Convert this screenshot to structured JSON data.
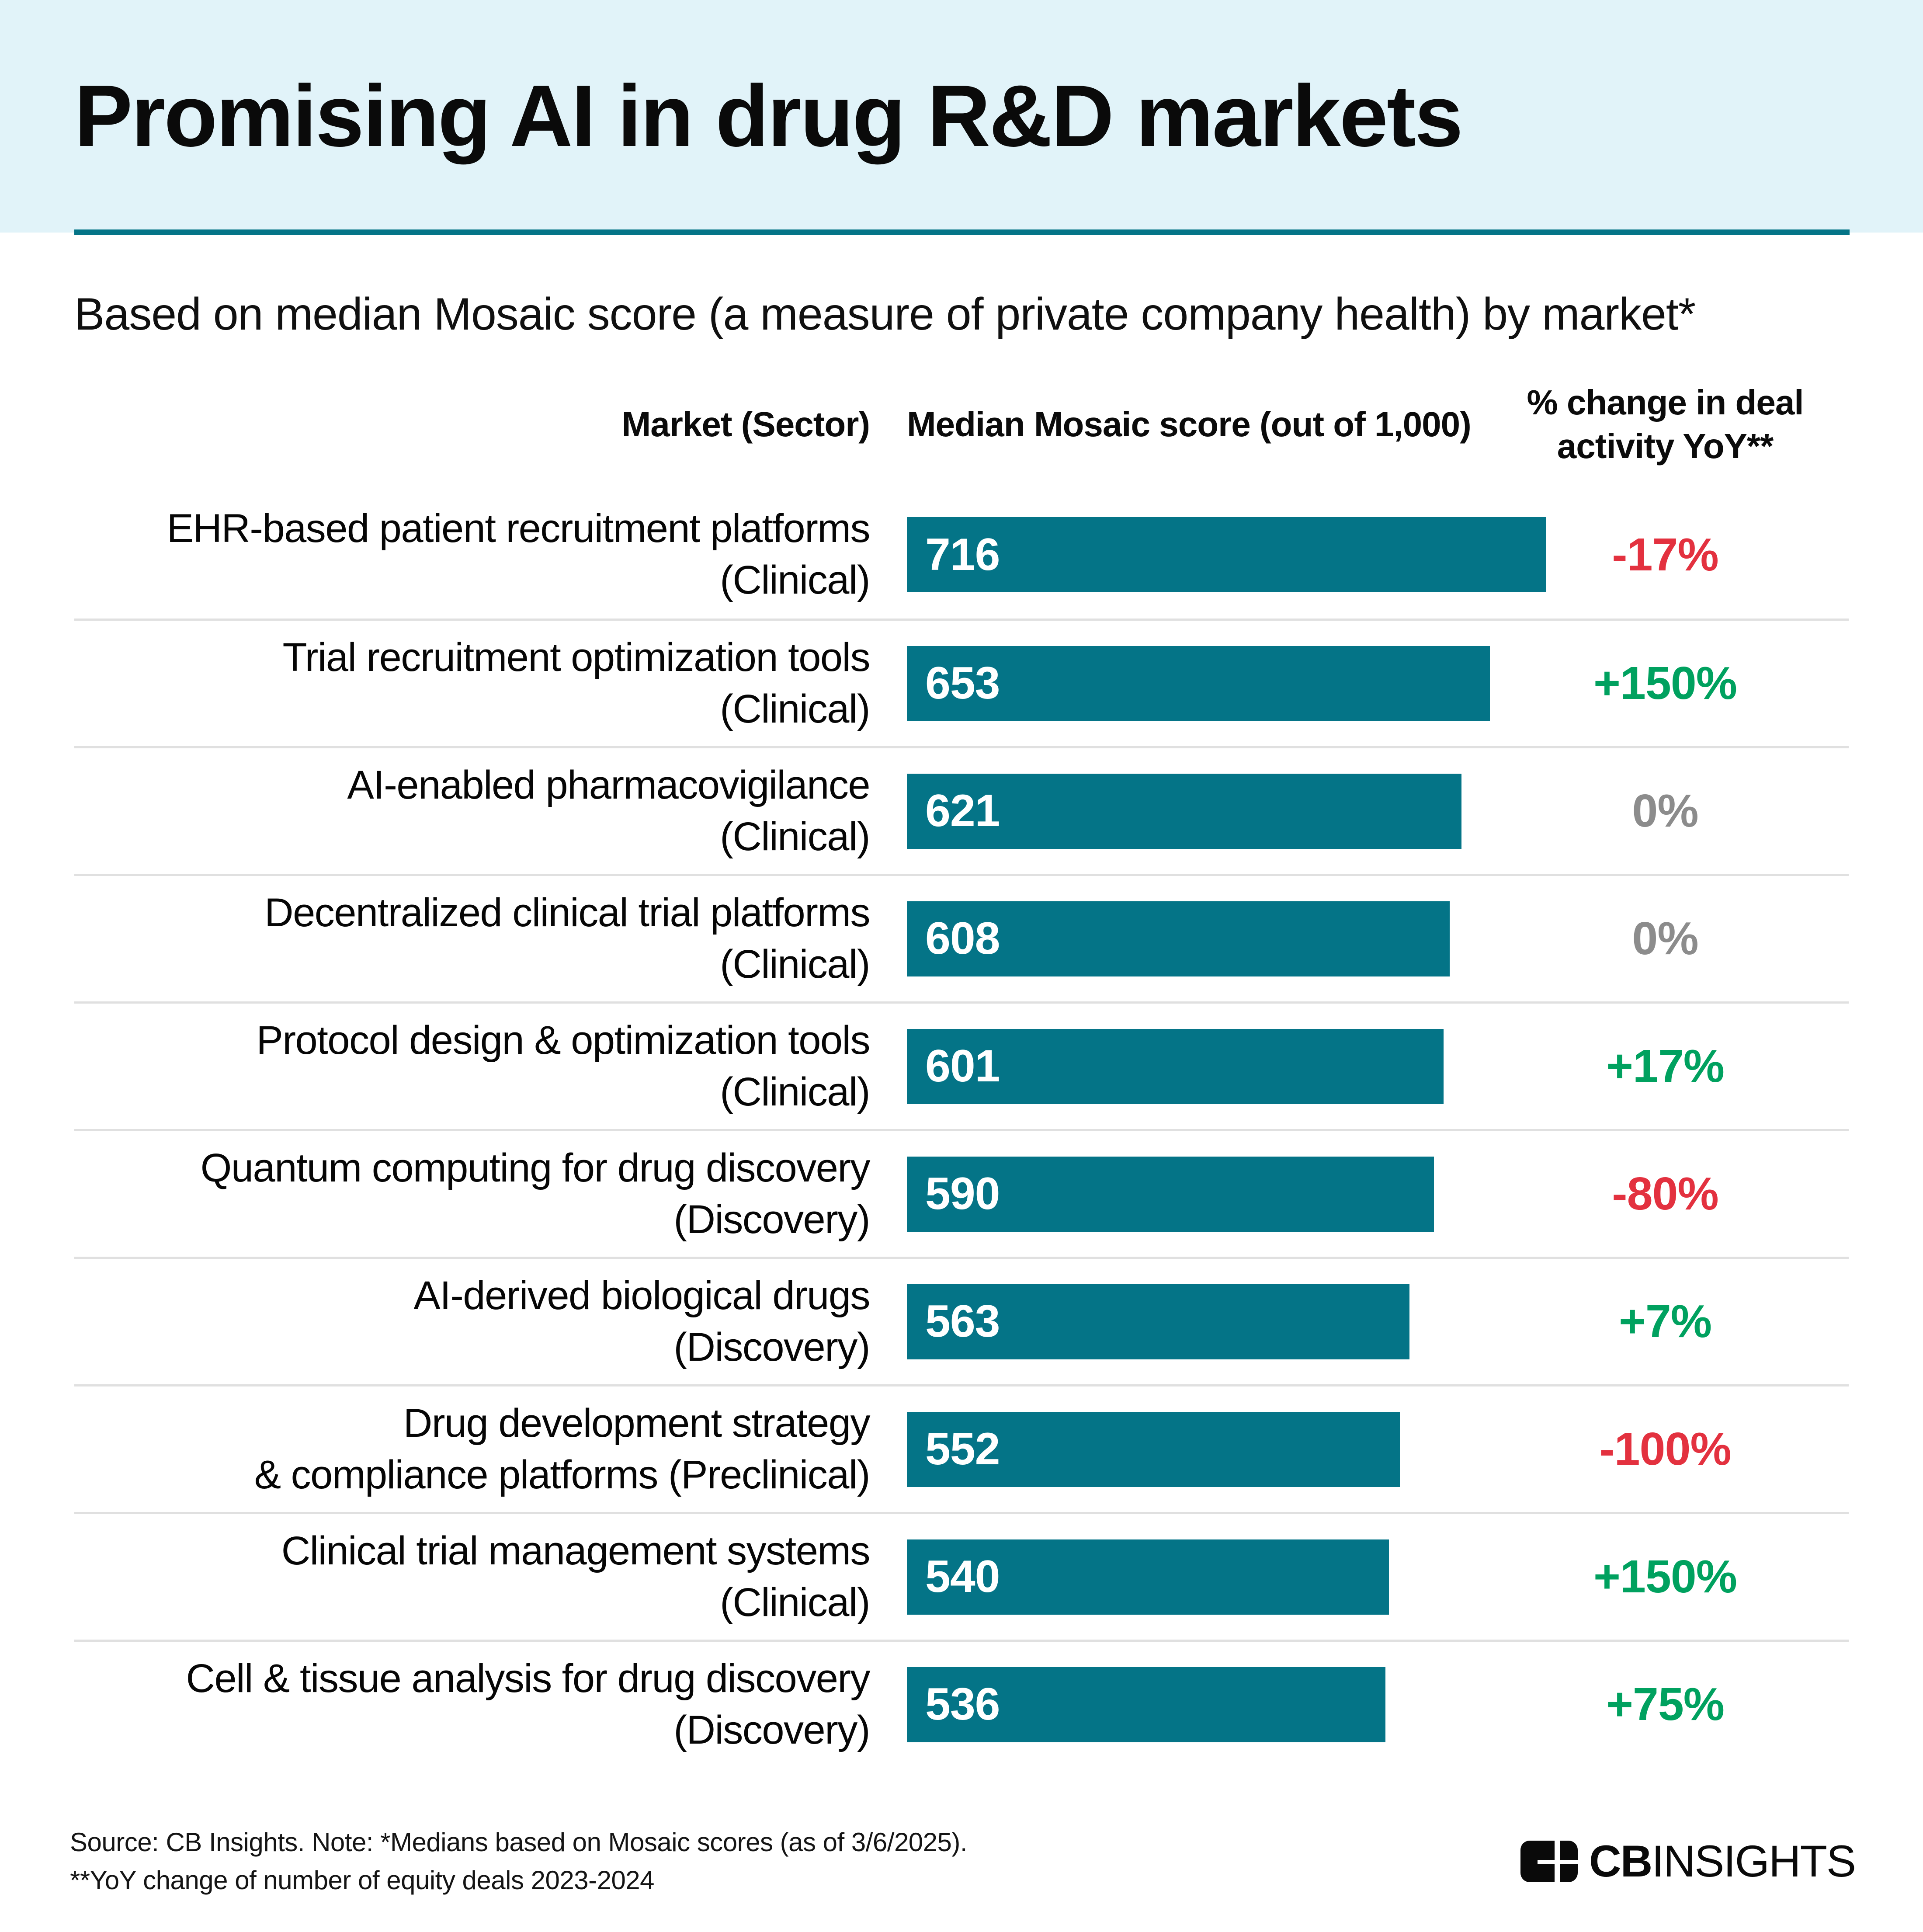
{
  "page": {
    "title": "Promising AI in drug R&D markets",
    "subtitle": "Based on median Mosaic score (a measure of private company health) by market*"
  },
  "columns": {
    "market": "Market (Sector)",
    "score": "Median Mosaic score (out of 1,000)",
    "change_line1": "% change in deal",
    "change_line2": "activity YoY**"
  },
  "rows": [
    {
      "market_line1": "EHR-based patient recruitment platforms",
      "market_line2": "(Clinical)",
      "score": 716,
      "change": "-17%"
    },
    {
      "market_line1": "Trial recruitment optimization tools",
      "market_line2": "(Clinical)",
      "score": 653,
      "change": "+150%"
    },
    {
      "market_line1": "AI-enabled pharmacovigilance",
      "market_line2": "(Clinical)",
      "score": 621,
      "change": "0%"
    },
    {
      "market_line1": "Decentralized clinical trial platforms",
      "market_line2": "(Clinical)",
      "score": 608,
      "change": "0%"
    },
    {
      "market_line1": "Protocol design & optimization tools",
      "market_line2": "(Clinical)",
      "score": 601,
      "change": "+17%"
    },
    {
      "market_line1": "Quantum computing for drug discovery",
      "market_line2": "(Discovery)",
      "score": 590,
      "change": "-80%"
    },
    {
      "market_line1": "AI-derived biological drugs",
      "market_line2": "(Discovery)",
      "score": 563,
      "change": "+7%"
    },
    {
      "market_line1": "Drug development strategy",
      "market_line2": "& compliance platforms (Preclinical)",
      "score": 552,
      "change": "-100%"
    },
    {
      "market_line1": "Clinical trial management systems",
      "market_line2": "(Clinical)",
      "score": 540,
      "change": "+150%"
    },
    {
      "market_line1": "Cell & tissue analysis for drug discovery",
      "market_line2": "(Discovery)",
      "score": 536,
      "change": "+75%"
    }
  ],
  "chart_data": {
    "type": "bar",
    "orientation": "horizontal",
    "title": "Promising AI in drug R&D markets",
    "subtitle": "Based on median Mosaic score (a measure of private company health) by market*",
    "categories": [
      "EHR-based patient recruitment platforms (Clinical)",
      "Trial recruitment optimization tools (Clinical)",
      "AI-enabled pharmacovigilance (Clinical)",
      "Decentralized clinical trial platforms (Clinical)",
      "Protocol design & optimization tools (Clinical)",
      "Quantum computing for drug discovery (Discovery)",
      "AI-derived biological drugs (Discovery)",
      "Drug development strategy & compliance platforms (Preclinical)",
      "Clinical trial management systems (Clinical)",
      "Cell & tissue analysis for drug discovery (Discovery)"
    ],
    "series": [
      {
        "name": "Median Mosaic score (out of 1,000)",
        "values": [
          716,
          653,
          621,
          608,
          601,
          590,
          563,
          552,
          540,
          536
        ]
      },
      {
        "name": "% change in deal activity YoY**",
        "values": [
          "-17%",
          "+150%",
          "0%",
          "0%",
          "+17%",
          "-80%",
          "+7%",
          "-100%",
          "+150%",
          "+75%"
        ]
      }
    ],
    "value_axis_max": 1000,
    "bar_scale_reference": 716,
    "legend": "none",
    "grid": "off",
    "bar_labels": "inside-left",
    "axis_ticks": "none"
  },
  "footer": {
    "line1": "Source: CB Insights. Note: *Medians based on Mosaic scores (as of 3/6/2025).",
    "line2": "**YoY change of number of equity deals 2023-2024"
  },
  "logo": {
    "cb": "CB",
    "insights": "INSIGHTS"
  },
  "colors": {
    "band_bg": "#E1F3F9",
    "teal": "#047487",
    "positive": "#00A15F",
    "negative": "#E3313F",
    "zero": "#8C8C8C",
    "separator": "#E0E0E0",
    "text": "#0B0B0B",
    "bar_label": "#FFFFFF"
  }
}
